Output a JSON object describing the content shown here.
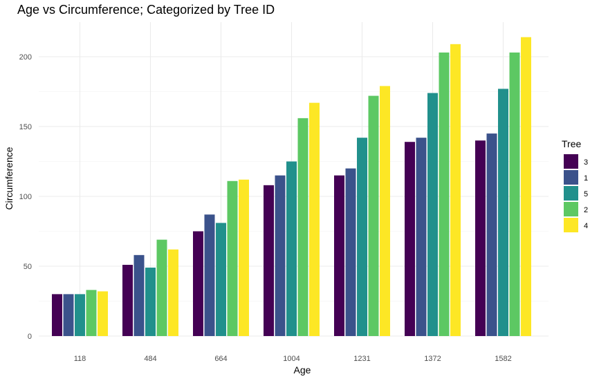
{
  "chart_data": {
    "type": "bar",
    "title": "Age vs Circumference; Categorized by Tree ID",
    "xlabel": "Age",
    "ylabel": "Circumference",
    "categories": [
      "118",
      "484",
      "664",
      "1004",
      "1231",
      "1372",
      "1582"
    ],
    "ylim": [
      0,
      220
    ],
    "yticks": [
      "0",
      "50",
      "100",
      "150",
      "200"
    ],
    "grid": true,
    "legend": {
      "title": "Tree",
      "position": "right"
    },
    "series": [
      {
        "name": "3",
        "color": "#440154",
        "values": [
          30,
          51,
          75,
          108,
          115,
          139,
          140
        ]
      },
      {
        "name": "1",
        "color": "#3b528b",
        "values": [
          30,
          58,
          87,
          115,
          120,
          142,
          145
        ]
      },
      {
        "name": "5",
        "color": "#21908c",
        "values": [
          30,
          49,
          81,
          125,
          142,
          174,
          177
        ]
      },
      {
        "name": "2",
        "color": "#5dc863",
        "values": [
          33,
          69,
          111,
          156,
          172,
          203,
          203
        ]
      },
      {
        "name": "4",
        "color": "#fde725",
        "values": [
          32,
          62,
          112,
          167,
          179,
          209,
          214
        ]
      }
    ]
  }
}
